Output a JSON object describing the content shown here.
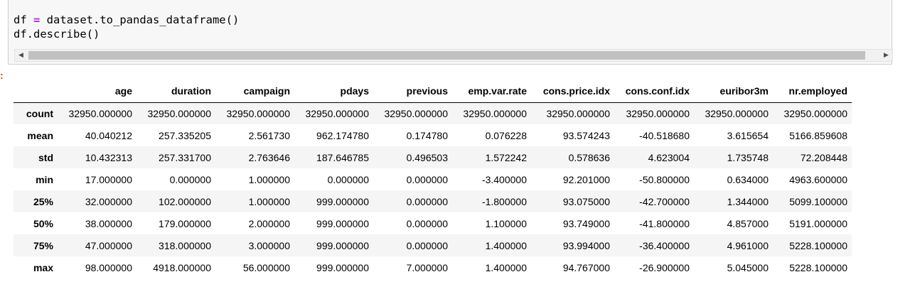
{
  "code_cell": {
    "line1_var": "df ",
    "line1_op": "=",
    "line1_rest": " dataset.to_pandas_dataframe()",
    "line2": "df.describe()"
  },
  "scrollbar": {
    "left_arrow": "◀",
    "right_arrow": "▶"
  },
  "output": {
    "marker": ":"
  },
  "table": {
    "columns": [
      "",
      "age",
      "duration",
      "campaign",
      "pdays",
      "previous",
      "emp.var.rate",
      "cons.price.idx",
      "cons.conf.idx",
      "euribor3m",
      "nr.employed"
    ],
    "rows": [
      {
        "label": "count",
        "values": [
          "32950.000000",
          "32950.000000",
          "32950.000000",
          "32950.000000",
          "32950.000000",
          "32950.000000",
          "32950.000000",
          "32950.000000",
          "32950.000000",
          "32950.000000"
        ]
      },
      {
        "label": "mean",
        "values": [
          "40.040212",
          "257.335205",
          "2.561730",
          "962.174780",
          "0.174780",
          "0.076228",
          "93.574243",
          "-40.518680",
          "3.615654",
          "5166.859608"
        ]
      },
      {
        "label": "std",
        "values": [
          "10.432313",
          "257.331700",
          "2.763646",
          "187.646785",
          "0.496503",
          "1.572242",
          "0.578636",
          "4.623004",
          "1.735748",
          "72.208448"
        ]
      },
      {
        "label": "min",
        "values": [
          "17.000000",
          "0.000000",
          "1.000000",
          "0.000000",
          "0.000000",
          "-3.400000",
          "92.201000",
          "-50.800000",
          "0.634000",
          "4963.600000"
        ]
      },
      {
        "label": "25%",
        "values": [
          "32.000000",
          "102.000000",
          "1.000000",
          "999.000000",
          "0.000000",
          "-1.800000",
          "93.075000",
          "-42.700000",
          "1.344000",
          "5099.100000"
        ]
      },
      {
        "label": "50%",
        "values": [
          "38.000000",
          "179.000000",
          "2.000000",
          "999.000000",
          "0.000000",
          "1.100000",
          "93.749000",
          "-41.800000",
          "4.857000",
          "5191.000000"
        ]
      },
      {
        "label": "75%",
        "values": [
          "47.000000",
          "318.000000",
          "3.000000",
          "999.000000",
          "0.000000",
          "1.400000",
          "93.994000",
          "-36.400000",
          "4.961000",
          "5228.100000"
        ]
      },
      {
        "label": "max",
        "values": [
          "98.000000",
          "4918.000000",
          "56.000000",
          "999.000000",
          "7.000000",
          "1.400000",
          "94.767000",
          "-26.900000",
          "5.045000",
          "5228.100000"
        ]
      }
    ]
  },
  "colors": {
    "code_background": "#f7f7f7",
    "operator": "#aa22ff",
    "out_marker": "#d84315",
    "stripe": "#f5f5f5"
  }
}
